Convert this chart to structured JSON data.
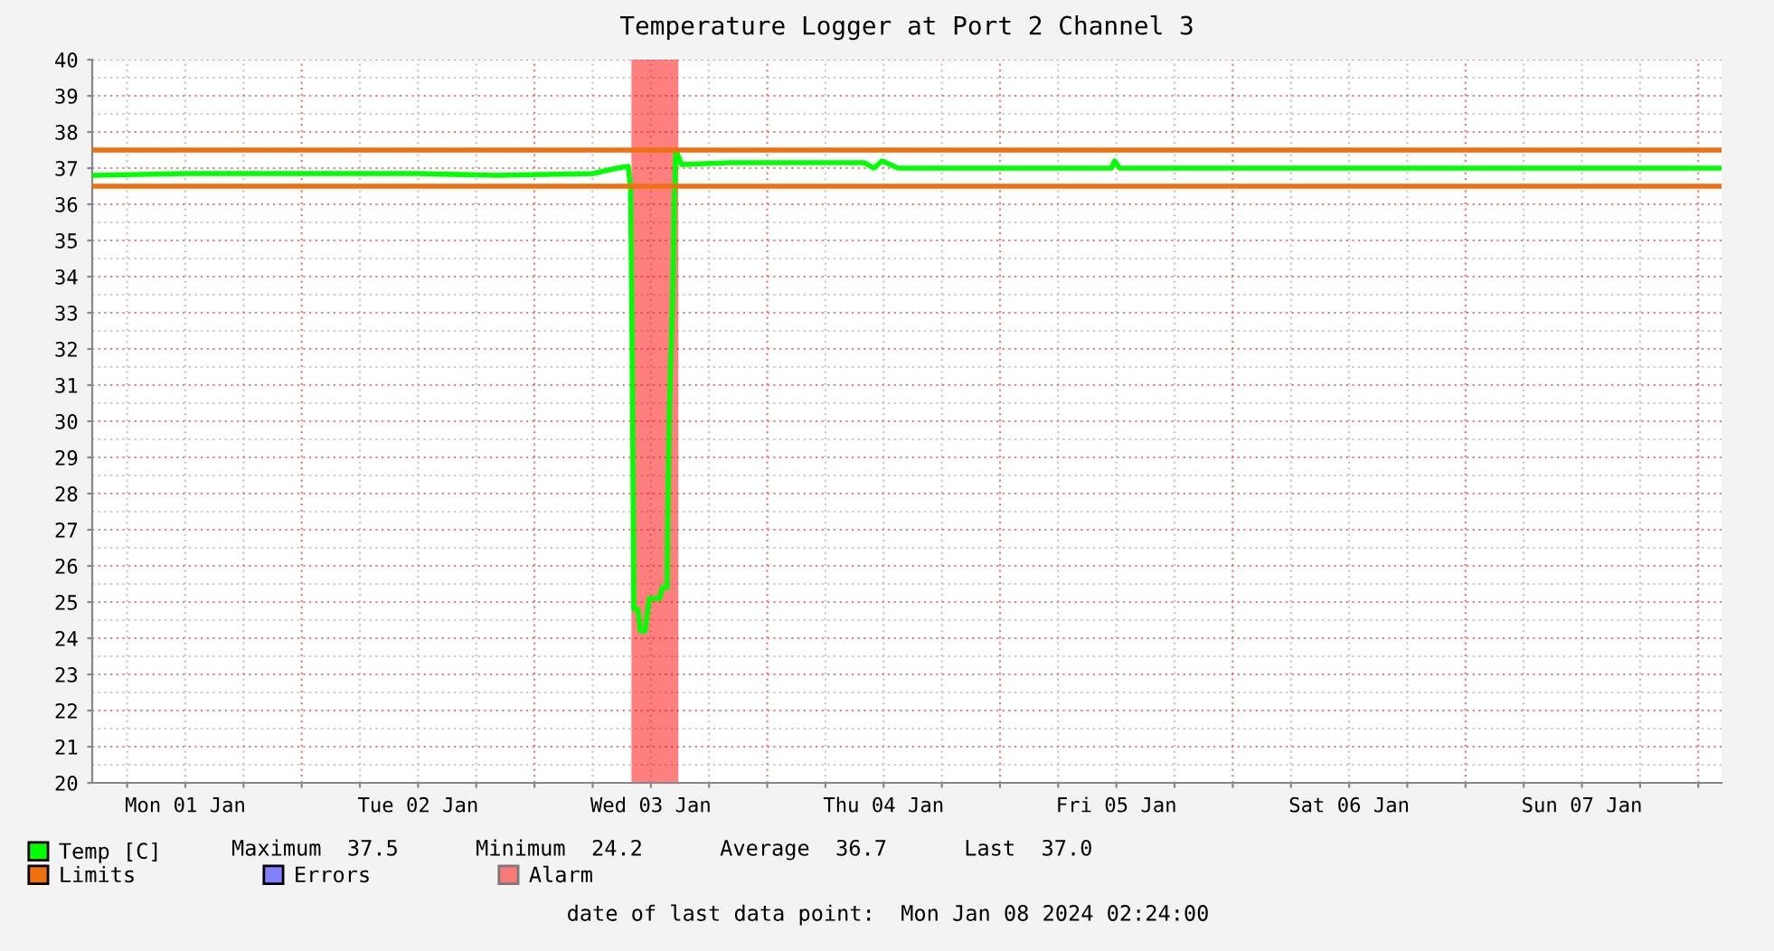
{
  "chart_data": {
    "type": "line",
    "title": "Temperature Logger at Port 2 Channel 3",
    "series": [
      {
        "name": "Temp [C]",
        "color": "#00ff00",
        "x": [
          "2024-01-01T02:30",
          "2024-01-01T12:00",
          "2024-01-02T00:00",
          "2024-01-02T12:00",
          "2024-01-02T20:00",
          "2024-01-03T06:00",
          "2024-01-03T08:30",
          "2024-01-03T09:40",
          "2024-01-03T09:55",
          "2024-01-03T10:05",
          "2024-01-03T10:15",
          "2024-01-03T10:40",
          "2024-01-03T10:55",
          "2024-01-03T11:25",
          "2024-01-03T11:50",
          "2024-01-03T12:55",
          "2024-01-03T13:10",
          "2024-01-03T13:40",
          "2024-01-03T13:45",
          "2024-01-03T13:55",
          "2024-01-03T14:15",
          "2024-01-03T14:25",
          "2024-01-03T14:35",
          "2024-01-03T15:10",
          "2024-01-03T20:00",
          "2024-01-04T06:00",
          "2024-01-04T10:00",
          "2024-01-04T11:00",
          "2024-01-04T11:50",
          "2024-01-04T13:30",
          "2024-01-04T20:00",
          "2024-01-05T11:30",
          "2024-01-05T11:50",
          "2024-01-05T12:20",
          "2024-01-06T12:00",
          "2024-01-07T12:00",
          "2024-01-08T02:20"
        ],
        "values": [
          36.8,
          36.85,
          36.85,
          36.85,
          36.8,
          36.85,
          37.0,
          37.05,
          36.4,
          31.6,
          24.8,
          24.8,
          24.2,
          24.2,
          25.1,
          25.1,
          25.4,
          25.4,
          27.5,
          30.4,
          33.4,
          36.0,
          37.5,
          37.1,
          37.15,
          37.15,
          37.15,
          37.0,
          37.2,
          37.0,
          37.0,
          37.0,
          37.2,
          37.0,
          37.0,
          37.0,
          37.0
        ]
      },
      {
        "name": "Errors",
        "color": "#7f7fff"
      }
    ],
    "ref_lines": [
      {
        "axis": "y",
        "value": 37.5,
        "label": "Limits",
        "color": "#f07010"
      },
      {
        "axis": "y",
        "value": 36.5,
        "color": "#f07010"
      }
    ],
    "bands": [
      {
        "axis": "x",
        "from": "2024-01-03T10:00",
        "to": "2024-01-03T14:50",
        "label": "Alarm",
        "color": "#ff0000"
      }
    ],
    "xlim": [
      "2024-01-01T02:24",
      "2024-01-08T02:24"
    ],
    "xticks": [
      {
        "value": "2024-01-01T06:00",
        "label": null
      },
      {
        "value": "2024-01-01T12:00",
        "label": "Mon 01 Jan"
      },
      {
        "value": "2024-01-01T18:00",
        "label": null
      },
      {
        "value": "2024-01-02T00:00",
        "label": null
      },
      {
        "value": "2024-01-02T06:00",
        "label": null
      },
      {
        "value": "2024-01-02T12:00",
        "label": "Tue 02 Jan"
      },
      {
        "value": "2024-01-02T18:00",
        "label": null
      },
      {
        "value": "2024-01-03T00:00",
        "label": null
      },
      {
        "value": "2024-01-03T06:00",
        "label": null
      },
      {
        "value": "2024-01-03T12:00",
        "label": "Wed 03 Jan"
      },
      {
        "value": "2024-01-03T18:00",
        "label": null
      },
      {
        "value": "2024-01-04T00:00",
        "label": null
      },
      {
        "value": "2024-01-04T06:00",
        "label": null
      },
      {
        "value": "2024-01-04T12:00",
        "label": "Thu 04 Jan"
      },
      {
        "value": "2024-01-04T18:00",
        "label": null
      },
      {
        "value": "2024-01-05T00:00",
        "label": null
      },
      {
        "value": "2024-01-05T06:00",
        "label": null
      },
      {
        "value": "2024-01-05T12:00",
        "label": "Fri 05 Jan"
      },
      {
        "value": "2024-01-05T18:00",
        "label": null
      },
      {
        "value": "2024-01-06T00:00",
        "label": null
      },
      {
        "value": "2024-01-06T06:00",
        "label": null
      },
      {
        "value": "2024-01-06T12:00",
        "label": "Sat 06 Jan"
      },
      {
        "value": "2024-01-06T18:00",
        "label": null
      },
      {
        "value": "2024-01-07T00:00",
        "label": null
      },
      {
        "value": "2024-01-07T06:00",
        "label": null
      },
      {
        "value": "2024-01-07T12:00",
        "label": "Sun 07 Jan"
      },
      {
        "value": "2024-01-07T18:00",
        "label": null
      },
      {
        "value": "2024-01-08T00:00",
        "label": null
      }
    ],
    "ylim": [
      20,
      40
    ],
    "yticks": [
      20,
      21,
      22,
      23,
      24,
      25,
      26,
      27,
      28,
      29,
      30,
      31,
      32,
      33,
      34,
      35,
      36,
      37,
      38,
      39,
      40
    ],
    "grid": true,
    "legend": "bottom",
    "marker": "none",
    "line_style": "solid",
    "annotations": [
      "Maximum  37.5      Minimum  24.2      Average  36.7      Last  37.0",
      "date of last data point:  Mon Jan 08 2024 02:24:00"
    ]
  }
}
